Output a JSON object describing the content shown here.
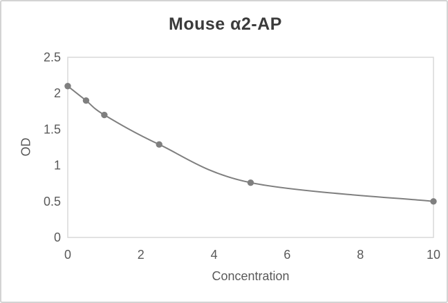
{
  "chart_data": {
    "type": "line",
    "title": "Mouse α2-AP",
    "xlabel": "Concentration",
    "ylabel": "OD",
    "x": [
      0,
      0.5,
      1,
      2.5,
      5,
      10
    ],
    "y": [
      2.1,
      1.9,
      1.7,
      1.29,
      0.76,
      0.5
    ],
    "series_name": "OD",
    "xlim": [
      0,
      10
    ],
    "ylim": [
      0,
      2.5
    ],
    "x_ticks": [
      0,
      2,
      4,
      6,
      8,
      10
    ],
    "y_ticks": [
      0,
      0.5,
      1,
      1.5,
      2,
      2.5
    ],
    "grid": false,
    "legend": false,
    "smooth": true,
    "marker": "circle",
    "colors": {
      "series": "#7f7f7f",
      "title": "#3b3b3b",
      "axis_text": "#595959",
      "plot_border": "#d9d9d9",
      "frame_border": "#d3d3d3",
      "background": "#ffffff"
    }
  }
}
